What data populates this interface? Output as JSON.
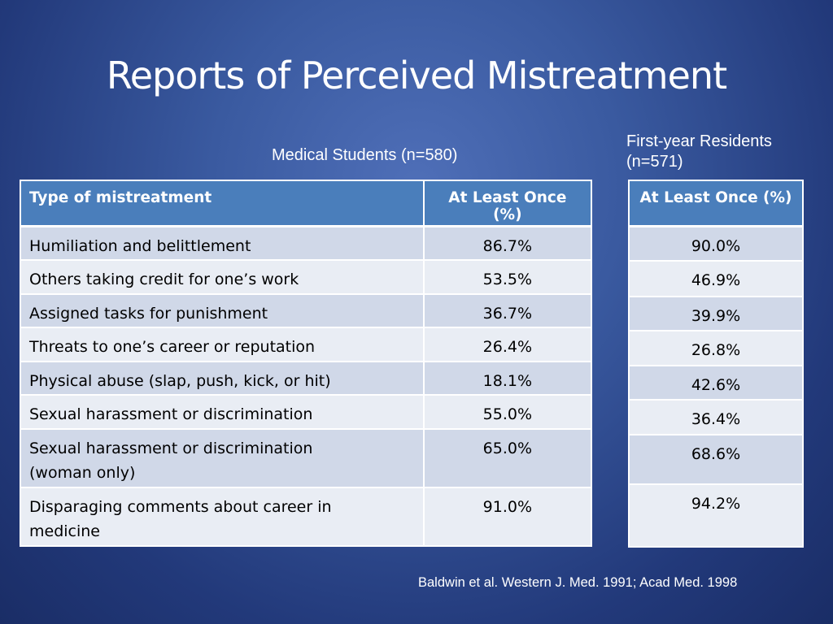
{
  "slide": {
    "title": "Reports of Perceived Mistreatment",
    "students_label": "Medical Students (n=580)",
    "residents_label_line1": "First-year Residents",
    "residents_label_line2": "(n=571)",
    "citation": "Baldwin et al. Western J. Med. 1991; Acad Med. 1998"
  },
  "students_table": {
    "headers": [
      "Type of mistreatment",
      "At Least Once (%)"
    ],
    "rows": [
      {
        "type_line1": "Humiliation and belittlement",
        "type_line2": "",
        "value": "86.7%"
      },
      {
        "type_line1": "Others taking credit for one’s work",
        "type_line2": "",
        "value": "53.5%"
      },
      {
        "type_line1": "Assigned tasks for punishment",
        "type_line2": "",
        "value": "36.7%"
      },
      {
        "type_line1": "Threats to one’s career or reputation",
        "type_line2": "",
        "value": "26.4%"
      },
      {
        "type_line1": "Physical abuse (slap, push, kick, or hit)",
        "type_line2": "",
        "value": "18.1%"
      },
      {
        "type_line1": "Sexual harassment or discrimination",
        "type_line2": "",
        "value": "55.0%"
      },
      {
        "type_line1": "Sexual harassment or discrimination",
        "type_line2": "(woman only)",
        "value": "65.0%"
      },
      {
        "type_line1": "Disparaging comments about career in",
        "type_line2": "medicine",
        "value": "91.0%"
      }
    ]
  },
  "residents_table": {
    "header": "At Least Once (%)",
    "values": [
      "90.0%",
      "46.9%",
      "39.9%",
      "26.8%",
      "42.6%",
      "36.4%",
      "68.6%",
      "94.2%"
    ]
  }
}
